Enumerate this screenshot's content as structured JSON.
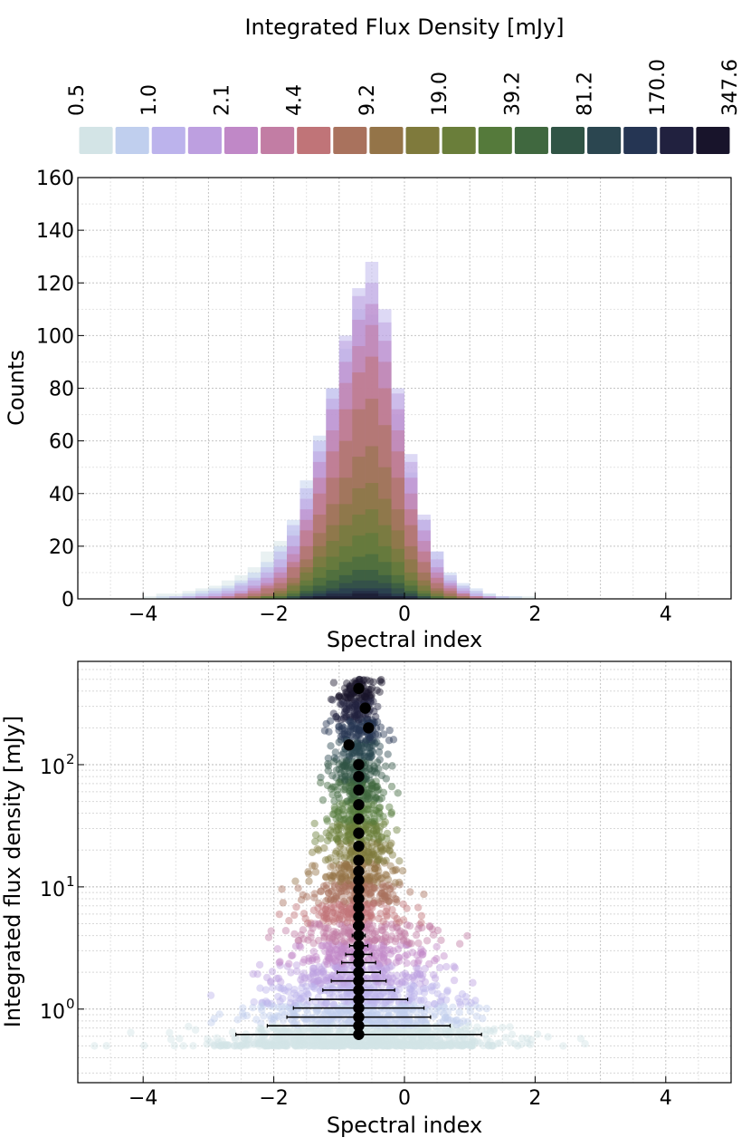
{
  "colorbar": {
    "title": "Integrated Flux Density [mJy]",
    "tick_labels": [
      "0.5",
      "1.0",
      "2.1",
      "4.4",
      "9.2",
      "19.0",
      "39.2",
      "81.2",
      "170.0",
      "347.6"
    ],
    "colors": [
      "#d3e4e6",
      "#c0cfee",
      "#bcb3ec",
      "#bd9fe0",
      "#c088c7",
      "#c27da4",
      "#c07478",
      "#a9725d",
      "#947448",
      "#7f7a3c",
      "#6a7e3a",
      "#557a3b",
      "#40683f",
      "#305445",
      "#2b4650",
      "#253553",
      "#21213f",
      "#18142b"
    ]
  },
  "chart_data": [
    {
      "type": "bar",
      "title": "",
      "xlabel": "Spectral index",
      "ylabel": "Counts",
      "xlim": [
        -5,
        5
      ],
      "ylim": [
        0,
        160
      ],
      "xticks": [
        -4,
        -2,
        0,
        2,
        4
      ],
      "yticks": [
        0,
        20,
        40,
        60,
        80,
        100,
        120,
        140,
        160
      ],
      "grid": true,
      "bin_width": 0.2,
      "bin_centers": [
        -3.9,
        -3.7,
        -3.5,
        -3.3,
        -3.1,
        -2.9,
        -2.7,
        -2.5,
        -2.3,
        -2.1,
        -1.9,
        -1.7,
        -1.5,
        -1.3,
        -1.1,
        -0.9,
        -0.7,
        -0.5,
        -0.3,
        -0.1,
        0.1,
        0.3,
        0.5,
        0.7,
        0.9,
        1.1,
        1.3,
        1.5,
        1.7,
        1.9
      ],
      "series": [
        {
          "values": [
            1,
            2,
            2,
            3,
            4,
            5,
            7,
            9,
            12,
            18,
            22,
            26,
            32,
            30,
            25,
            20,
            18,
            16,
            18,
            20,
            22,
            18,
            12,
            8,
            5,
            3,
            2,
            1,
            1,
            1
          ]
        },
        {
          "values": [
            0,
            1,
            1,
            2,
            3,
            4,
            5,
            7,
            10,
            14,
            20,
            30,
            45,
            62,
            80,
            95,
            110,
            108,
            90,
            70,
            48,
            30,
            18,
            10,
            6,
            4,
            2,
            1,
            1,
            0
          ]
        },
        {
          "values": [
            0,
            0,
            1,
            1,
            2,
            3,
            4,
            6,
            8,
            12,
            18,
            28,
            42,
            60,
            80,
            100,
            118,
            128,
            110,
            80,
            55,
            32,
            18,
            9,
            5,
            3,
            1,
            1,
            0,
            0
          ]
        },
        {
          "values": [
            0,
            0,
            0,
            1,
            1,
            2,
            3,
            5,
            7,
            10,
            15,
            24,
            38,
            56,
            76,
            98,
            115,
            120,
            105,
            78,
            52,
            30,
            15,
            7,
            4,
            2,
            1,
            0,
            0,
            0
          ]
        },
        {
          "values": [
            0,
            0,
            0,
            0,
            1,
            1,
            2,
            3,
            5,
            8,
            12,
            20,
            34,
            52,
            72,
            90,
            106,
            112,
            98,
            72,
            46,
            26,
            12,
            6,
            3,
            1,
            1,
            0,
            0,
            0
          ]
        },
        {
          "values": [
            0,
            0,
            0,
            0,
            0,
            1,
            1,
            2,
            4,
            6,
            10,
            17,
            30,
            46,
            64,
            82,
            96,
            104,
            90,
            64,
            40,
            22,
            10,
            5,
            2,
            1,
            0,
            0,
            0,
            0
          ]
        },
        {
          "values": [
            0,
            0,
            0,
            0,
            0,
            0,
            1,
            2,
            3,
            5,
            8,
            14,
            26,
            40,
            56,
            72,
            86,
            92,
            80,
            56,
            34,
            18,
            8,
            4,
            2,
            1,
            0,
            0,
            0,
            0
          ]
        },
        {
          "values": [
            0,
            0,
            0,
            0,
            0,
            0,
            0,
            1,
            2,
            4,
            6,
            12,
            20,
            32,
            46,
            60,
            72,
            76,
            66,
            46,
            28,
            14,
            6,
            3,
            1,
            0,
            0,
            0,
            0,
            0
          ]
        },
        {
          "values": [
            0,
            0,
            0,
            0,
            0,
            0,
            0,
            0,
            1,
            2,
            4,
            8,
            15,
            25,
            36,
            46,
            54,
            58,
            50,
            34,
            20,
            10,
            4,
            2,
            1,
            0,
            0,
            0,
            0,
            0
          ]
        },
        {
          "values": [
            0,
            0,
            0,
            0,
            0,
            0,
            0,
            0,
            1,
            1,
            3,
            6,
            12,
            20,
            28,
            36,
            42,
            44,
            38,
            26,
            15,
            7,
            3,
            1,
            0,
            0,
            0,
            0,
            0,
            0
          ]
        },
        {
          "values": [
            0,
            0,
            0,
            0,
            0,
            0,
            0,
            0,
            0,
            1,
            2,
            5,
            10,
            16,
            22,
            28,
            32,
            34,
            28,
            19,
            10,
            5,
            2,
            1,
            0,
            0,
            0,
            0,
            0,
            0
          ]
        },
        {
          "values": [
            0,
            0,
            0,
            0,
            0,
            0,
            0,
            0,
            0,
            1,
            1,
            3,
            7,
            12,
            16,
            20,
            24,
            25,
            20,
            14,
            7,
            3,
            1,
            0,
            0,
            0,
            0,
            0,
            0,
            0
          ]
        },
        {
          "values": [
            0,
            0,
            0,
            0,
            0,
            0,
            0,
            0,
            0,
            0,
            1,
            2,
            5,
            8,
            11,
            14,
            16,
            17,
            14,
            9,
            5,
            2,
            1,
            0,
            0,
            0,
            0,
            0,
            0,
            0
          ]
        },
        {
          "values": [
            0,
            0,
            0,
            0,
            0,
            0,
            0,
            0,
            0,
            0,
            0,
            1,
            3,
            5,
            7,
            9,
            11,
            11,
            9,
            6,
            3,
            1,
            0,
            0,
            0,
            0,
            0,
            0,
            0,
            0
          ]
        },
        {
          "values": [
            0,
            0,
            0,
            0,
            0,
            0,
            0,
            0,
            0,
            0,
            0,
            1,
            2,
            3,
            4,
            6,
            7,
            7,
            6,
            4,
            2,
            1,
            0,
            0,
            0,
            0,
            0,
            0,
            0,
            0
          ]
        },
        {
          "values": [
            0,
            0,
            0,
            0,
            0,
            0,
            0,
            0,
            0,
            0,
            0,
            0,
            1,
            2,
            3,
            4,
            4,
            4,
            4,
            2,
            1,
            0,
            0,
            0,
            0,
            0,
            0,
            0,
            0,
            0
          ]
        },
        {
          "values": [
            0,
            0,
            0,
            0,
            0,
            0,
            0,
            0,
            0,
            0,
            0,
            0,
            1,
            1,
            2,
            2,
            3,
            3,
            2,
            1,
            1,
            0,
            0,
            0,
            0,
            0,
            0,
            0,
            0,
            0
          ]
        },
        {
          "values": [
            0,
            0,
            0,
            0,
            0,
            0,
            0,
            0,
            0,
            0,
            0,
            0,
            0,
            1,
            1,
            1,
            2,
            2,
            1,
            1,
            0,
            0,
            0,
            0,
            0,
            0,
            0,
            0,
            0,
            0
          ]
        }
      ]
    },
    {
      "type": "scatter",
      "title": "",
      "xlabel": "Spectral index",
      "ylabel": "Integrated flux density [mJy]",
      "xlim": [
        -5,
        5
      ],
      "ylim": [
        0.25,
        700
      ],
      "yscale": "log",
      "xticks": [
        -4,
        -2,
        0,
        2,
        4
      ],
      "yticks": [
        1,
        10,
        100
      ],
      "ytick_labels": [
        "10",
        "10",
        "10"
      ],
      "ytick_exponents": [
        "0",
        "1",
        "2"
      ],
      "grid": true,
      "medians": {
        "flux": [
          0.62,
          0.73,
          0.86,
          1.02,
          1.2,
          1.43,
          1.7,
          2.0,
          2.4,
          2.8,
          3.3,
          4.0,
          4.8,
          5.7,
          6.8,
          8.0,
          9.5,
          11.3,
          13.4,
          16.5,
          21.5,
          27.5,
          36,
          47,
          62,
          80,
          100,
          145,
          200,
          290,
          420
        ],
        "index": [
          -0.7,
          -0.7,
          -0.7,
          -0.7,
          -0.7,
          -0.7,
          -0.7,
          -0.7,
          -0.7,
          -0.7,
          -0.7,
          -0.7,
          -0.7,
          -0.7,
          -0.7,
          -0.7,
          -0.7,
          -0.7,
          -0.7,
          -0.7,
          -0.7,
          -0.7,
          -0.7,
          -0.7,
          -0.7,
          -0.7,
          -0.7,
          -0.85,
          -0.55,
          -0.6,
          -0.7
        ],
        "err": [
          1.88,
          1.4,
          1.1,
          1.0,
          0.75,
          0.55,
          0.42,
          0.33,
          0.26,
          0.2,
          0.14,
          0.1,
          0.08,
          0.06,
          0.05,
          0.04,
          0.03,
          0.02,
          0,
          0,
          0,
          0,
          0,
          0,
          0,
          0,
          0,
          0,
          0,
          0,
          0
        ]
      },
      "scatter_points_note": "dense cloud of sources colored by flux density"
    }
  ]
}
